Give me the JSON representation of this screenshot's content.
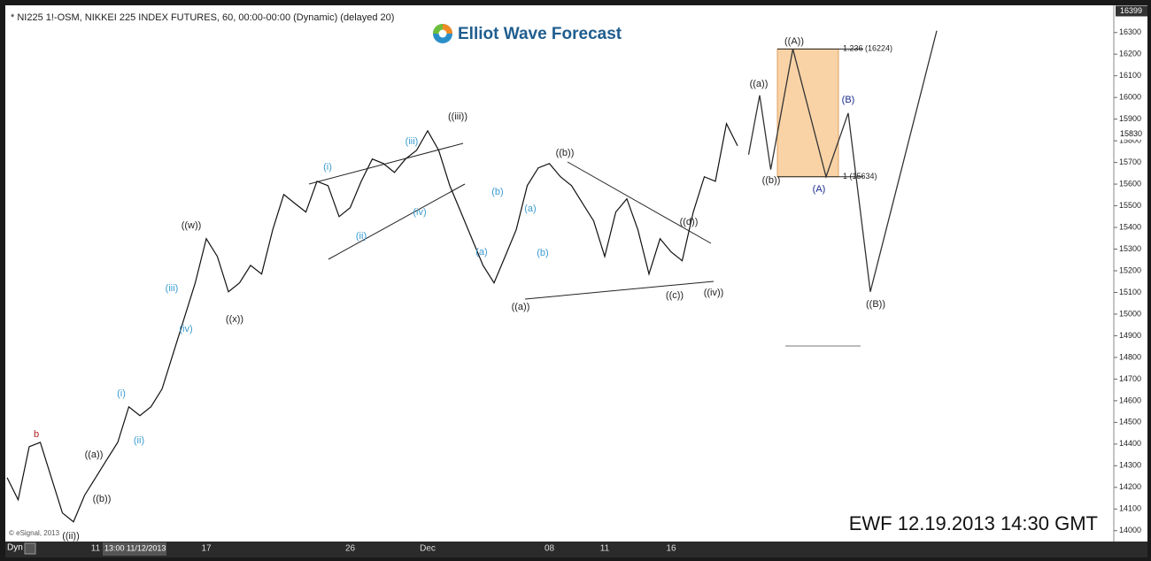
{
  "chart_data": {
    "type": "line",
    "title": "* NI225 1!-OSM, NIKKEI 225 INDEX FUTURES, 60, 00:00-00:00 (Dynamic) (delayed 20)",
    "brand": "Elliot Wave Forecast",
    "stamp": "EWF 12.19.2013  14:30 GMT",
    "copyright": "© eSignal, 2013",
    "mode": "Dyn",
    "cursor_label": "13:00 11/12/2013",
    "categories": [
      null,
      null,
      null,
      null,
      null,
      null,
      null,
      null,
      "11",
      null,
      null,
      null,
      null,
      null,
      null,
      null,
      null,
      null,
      "17",
      null,
      null,
      null,
      null,
      null,
      null,
      null,
      null,
      null,
      null,
      null,
      null,
      "26",
      null,
      null,
      null,
      null,
      null,
      null,
      "Dec",
      null,
      null,
      null,
      null,
      null,
      null,
      null,
      null,
      null,
      null,
      "08",
      null,
      null,
      null,
      null,
      "11",
      null,
      null,
      null,
      null,
      null,
      "16",
      null,
      null,
      null,
      null,
      null,
      null
    ],
    "series": [
      {
        "color": "#111111",
        "values": [
          14245,
          14143,
          14388,
          14408,
          14245,
          14082,
          14041,
          14163,
          14245,
          14327,
          14408,
          14572,
          14531,
          14572,
          14654,
          14817,
          14980,
          15144,
          15348,
          15266,
          15103,
          15144,
          15225,
          15185,
          15389,
          15552,
          15511,
          15471,
          15613,
          15593,
          15450,
          15491,
          15613,
          15716,
          15695,
          15654,
          15716,
          15756,
          15846,
          15756,
          15593,
          15471,
          15348,
          15225,
          15144,
          15266,
          15389,
          15593,
          15675,
          15695,
          15634,
          15593,
          15511,
          15430,
          15266,
          15471,
          15532,
          15389,
          15185,
          15348,
          15287,
          15246,
          15471,
          15634,
          15613,
          15879,
          15777
        ]
      }
    ],
    "projection": {
      "color": "#333333",
      "x": [
        67,
        68,
        69,
        71,
        74,
        76,
        78,
        84
      ],
      "values": [
        15736,
        16010,
        15667,
        16224,
        15634,
        15928,
        15103,
        16308
      ]
    },
    "fib_levels": [
      {
        "value": 16224,
        "label": "1.236 (16224)"
      },
      {
        "value": 15634,
        "label": "1 (15634)"
      }
    ],
    "fib_zone_color": "#f9d3a6",
    "price_markers": [
      {
        "value": 16399,
        "label": "16399"
      },
      {
        "value": 15830,
        "label": "15830"
      }
    ],
    "ylim": [
      13950,
      16450
    ],
    "yticks": [
      14000,
      14100,
      14200,
      14300,
      14400,
      14500,
      14600,
      14700,
      14800,
      14900,
      15000,
      15100,
      15200,
      15300,
      15400,
      15500,
      15600,
      15700,
      15800,
      15900,
      16000,
      16100,
      16200,
      16300
    ],
    "wave_labels": [
      "b",
      "((a))",
      "((b))",
      "((ii))",
      "(i)",
      "(ii)",
      "(iii)",
      "(iv)",
      "((w))",
      "((x))",
      "(i)",
      "(ii)",
      "(iii)",
      "(iv)",
      "((iii))",
      "(b)",
      "(a)",
      "(a)",
      "(b)",
      "((b))",
      "((a))",
      "((c))",
      "((d))",
      "((iv))",
      "((a))",
      "((b))",
      "((A))",
      "(B)",
      "(A)",
      "((B))"
    ]
  }
}
